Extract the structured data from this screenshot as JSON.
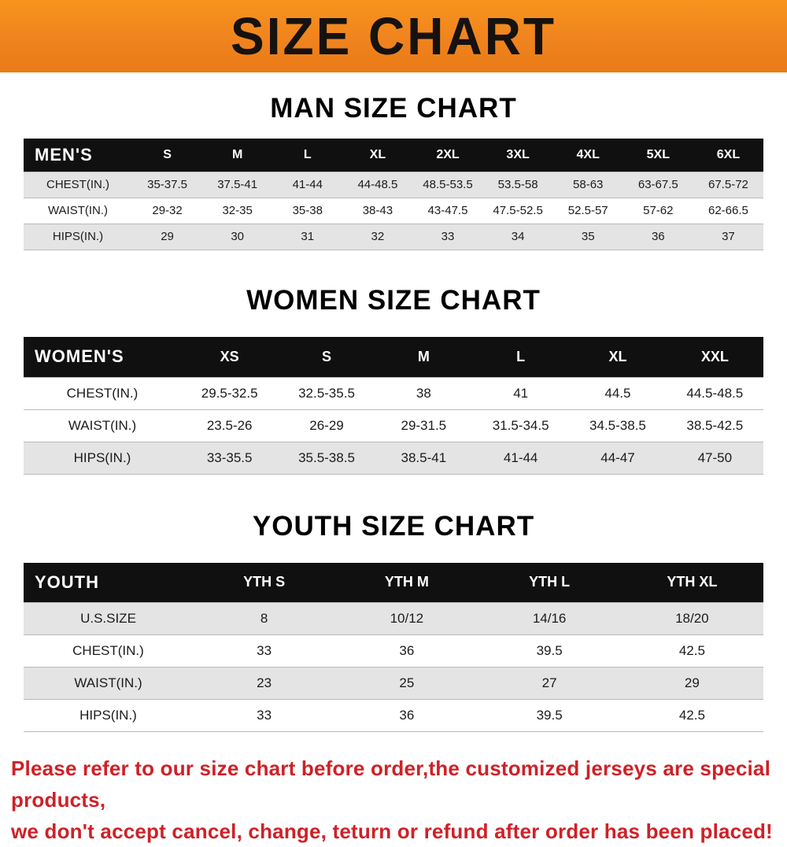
{
  "banner": {
    "title": "SIZE CHART",
    "background_color": "#f0831e",
    "text_color": "#151210"
  },
  "chart_data": [
    {
      "type": "table",
      "title": "MAN SIZE CHART",
      "columns": [
        "MEN'S",
        "S",
        "M",
        "L",
        "XL",
        "2XL",
        "3XL",
        "4XL",
        "5XL",
        "6XL"
      ],
      "rows": [
        [
          "CHEST(IN.)",
          "35-37.5",
          "37.5-41",
          "41-44",
          "44-48.5",
          "48.5-53.5",
          "53.5-58",
          "58-63",
          "63-67.5",
          "67.5-72"
        ],
        [
          "WAIST(IN.)",
          "29-32",
          "32-35",
          "35-38",
          "38-43",
          "43-47.5",
          "47.5-52.5",
          "52.5-57",
          "57-62",
          "62-66.5"
        ],
        [
          "HIPS(IN.)",
          "29",
          "30",
          "31",
          "32",
          "33",
          "34",
          "35",
          "36",
          "37"
        ]
      ],
      "header_bg": "#101010",
      "stripe_bg": "#e4e4e4"
    },
    {
      "type": "table",
      "title": "WOMEN SIZE CHART",
      "columns": [
        "WOMEN'S",
        "XS",
        "S",
        "M",
        "L",
        "XL",
        "XXL"
      ],
      "rows": [
        [
          "CHEST(IN.)",
          "29.5-32.5",
          "32.5-35.5",
          "38",
          "41",
          "44.5",
          "44.5-48.5"
        ],
        [
          "WAIST(IN.)",
          "23.5-26",
          "26-29",
          "29-31.5",
          "31.5-34.5",
          "34.5-38.5",
          "38.5-42.5"
        ],
        [
          "HIPS(IN.)",
          "33-35.5",
          "35.5-38.5",
          "38.5-41",
          "41-44",
          "44-47",
          "47-50"
        ]
      ],
      "header_bg": "#101010",
      "stripe_bg": "#e4e4e4"
    },
    {
      "type": "table",
      "title": "YOUTH SIZE CHART",
      "columns": [
        "YOUTH",
        "YTH S",
        "YTH M",
        "YTH L",
        "YTH XL"
      ],
      "rows": [
        [
          "U.S.SIZE",
          "8",
          "10/12",
          "14/16",
          "18/20"
        ],
        [
          "CHEST(IN.)",
          "33",
          "36",
          "39.5",
          "42.5"
        ],
        [
          "WAIST(IN.)",
          "23",
          "25",
          "27",
          "29"
        ],
        [
          "HIPS(IN.)",
          "33",
          "36",
          "39.5",
          "42.5"
        ]
      ],
      "header_bg": "#101010",
      "stripe_bg": "#e4e4e4"
    }
  ],
  "footer": {
    "lines": [
      "Please refer to our size chart before order,the customized jerseys are special products,",
      "we don't accept cancel, change, teturn or refund after order has been placed!"
    ],
    "color": "#ce2127"
  }
}
